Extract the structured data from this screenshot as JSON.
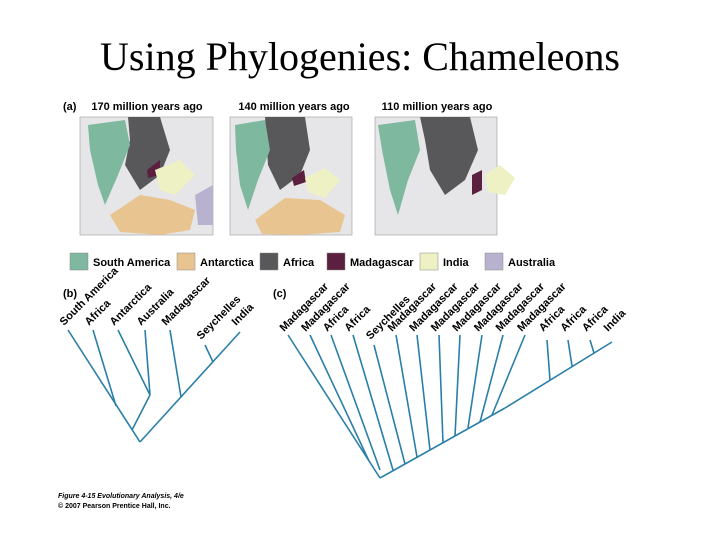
{
  "title": "Using Phylogenies: Chameleons",
  "panel_a": {
    "label": "(a)",
    "maps": [
      "170 million years ago",
      "140 million years ago",
      "110 million years ago"
    ]
  },
  "legend": [
    {
      "name": "South America",
      "color": "#7db89f"
    },
    {
      "name": "Antarctica",
      "color": "#e8c490"
    },
    {
      "name": "Africa",
      "color": "#58585a"
    },
    {
      "name": "Madagascar",
      "color": "#5b1f3f"
    },
    {
      "name": "India",
      "color": "#eef1c3"
    },
    {
      "name": "Australia",
      "color": "#b9b2cf"
    }
  ],
  "panel_b": {
    "label": "(b)",
    "tips": [
      "South America",
      "Africa",
      "Antarctica",
      "Australia",
      "Madagascar",
      "Seychelles",
      "India"
    ]
  },
  "panel_c": {
    "label": "(c)",
    "tips": [
      "Madagascar",
      "Madagascar",
      "Africa",
      "Africa",
      "Seychelles",
      "Madagascar",
      "Madagascar",
      "Madagascar",
      "Madagascar",
      "Madagascar",
      "Madagascar",
      "Madagascar",
      "Africa",
      "Africa",
      "Africa",
      "India"
    ]
  },
  "caption": [
    "Figure 4-15 Evolutionary Analysis, 4/e",
    "© 2007 Pearson Prentice Hall, Inc."
  ]
}
